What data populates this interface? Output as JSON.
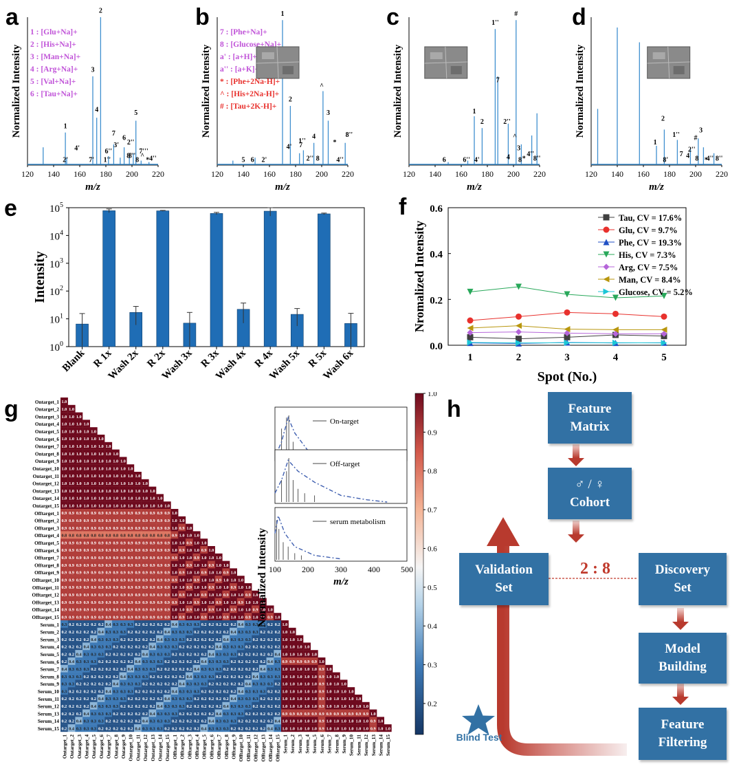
{
  "panel_letters": {
    "a": "a",
    "b": "b",
    "c": "c",
    "d": "d",
    "e": "e",
    "f": "f",
    "g": "g",
    "h": "h"
  },
  "spectra_common": {
    "ylabel": "Normalized Intensity",
    "xlabel": "m/z",
    "xticks": [
      "120",
      "140",
      "160",
      "180",
      "200",
      "220"
    ]
  },
  "panel_a": {
    "legend": [
      "1 : [Glu+Na]+",
      "2 : [His+Na]+",
      "3 : [Man+Na]+",
      "4 : [Arg+Na]+",
      "5 : [Val+Na]+",
      "6 : [Tau+Na]+"
    ],
    "peak_labels": [
      "1",
      "2",
      "3",
      "4",
      "5",
      "6",
      "7",
      "4'",
      "2'",
      "7'",
      "6''",
      "3'",
      "1''",
      "8'",
      "2''",
      "^",
      "8",
      "7'''",
      "*",
      "4''",
      "8''"
    ]
  },
  "panel_b": {
    "legend": [
      "7 : [Phe+Na]+",
      "8 : [Glucose+Na]+",
      "a' : [a+H]+",
      "a'' : [a+K]+",
      "* : [Phe+2Na-H]+",
      "^ : [His+2Na-H]+",
      "# : [Tau+2K-H]+"
    ],
    "legend_colors": [
      "#c053d8",
      "#c053d8",
      "#c053d8",
      "#c053d8",
      "#e8312d",
      "#e8312d",
      "#e8312d"
    ],
    "peak_labels": [
      "1",
      "2",
      "3",
      "4",
      "5",
      "6",
      "2'",
      "4'",
      "7",
      "1''",
      "2''",
      "8",
      "^",
      "*",
      "4''",
      "8''"
    ]
  },
  "panel_c": {
    "peak_labels": [
      "1''",
      "#",
      "7",
      "1",
      "2",
      "2''",
      "^",
      "3",
      "4",
      "4'",
      "6",
      "6''",
      "8",
      "*",
      "4''",
      "8''"
    ]
  },
  "panel_d": {
    "peak_labels": [
      "2",
      "1''",
      "1",
      "3",
      "#",
      "8'",
      "7",
      "2''",
      "4",
      "8",
      "*",
      "4''",
      "8''"
    ]
  },
  "chart_data": [
    {
      "type": "bar",
      "panel": "e",
      "ylabel": "Intensity",
      "yscale": "log",
      "ylim": [
        1,
        100000
      ],
      "yticks": [
        "10^0",
        "10^1",
        "10^2",
        "10^3",
        "10^4",
        "10^5"
      ],
      "categories": [
        "Blank",
        "R 1x",
        "Wash 2x",
        "R 2x",
        "Wash 3x",
        "R 3x",
        "Wash 4x",
        "R 4x",
        "Wash 5x",
        "R 5x",
        "Wash 6x"
      ],
      "values": [
        6.5,
        78000,
        17,
        77000,
        7,
        62000,
        22,
        75000,
        14.5,
        60000,
        6.8
      ],
      "errors": [
        9,
        12000,
        11,
        3000,
        10,
        6000,
        15,
        25000,
        9,
        4000,
        9
      ],
      "color": "#1f6db5"
    },
    {
      "type": "line",
      "panel": "f",
      "xlabel": "Spot (No.)",
      "ylabel": "Nromalized Intensity",
      "x": [
        1,
        2,
        3,
        4,
        5
      ],
      "ylim": [
        0,
        0.6
      ],
      "yticks": [
        "0.0",
        "0.2",
        "0.4",
        "0.6"
      ],
      "legend_position": "top-right",
      "series": [
        {
          "name": "Tau, CV = 17.6%",
          "values": [
            0.035,
            0.028,
            0.035,
            0.045,
            0.04
          ],
          "color": "#404040",
          "marker": "square"
        },
        {
          "name": "Glu, CV = 9.7%",
          "values": [
            0.108,
            0.125,
            0.143,
            0.137,
            0.125
          ],
          "color": "#e8312d",
          "marker": "circle"
        },
        {
          "name": "Phe, CV = 19.3%",
          "values": [
            0.01,
            0.008,
            0.012,
            0.01,
            0.011
          ],
          "color": "#1f4fc4",
          "marker": "triangle-up"
        },
        {
          "name": "His, CV = 7.3%",
          "values": [
            0.233,
            0.255,
            0.222,
            0.207,
            0.215
          ],
          "color": "#28a85a",
          "marker": "triangle-down"
        },
        {
          "name": "Arg, CV = 7.5%",
          "values": [
            0.055,
            0.058,
            0.053,
            0.05,
            0.05
          ],
          "color": "#b565d9",
          "marker": "diamond"
        },
        {
          "name": "Man, CV = 8.4%",
          "values": [
            0.075,
            0.085,
            0.07,
            0.068,
            0.068
          ],
          "color": "#b8960d",
          "marker": "triangle-left"
        },
        {
          "name": "Glucose, CV = 5.2%",
          "values": [
            0.012,
            0.01,
            0.011,
            0.011,
            0.01
          ],
          "color": "#1cc6d6",
          "marker": "triangle-right"
        }
      ]
    },
    {
      "type": "heatmap",
      "panel": "g",
      "labels": [
        "Ontarget_1",
        "Ontarget_2",
        "Ontarget_3",
        "Ontarget_4",
        "Ontarget_5",
        "Ontarget_6",
        "Ontarget_7",
        "Ontarget_8",
        "Ontarget_9",
        "Ontarget_10",
        "Ontarget_11",
        "Ontarget_12",
        "Ontarget_13",
        "Ontarget_14",
        "Ontarget_15",
        "Offtarget_1",
        "Offtarget_2",
        "Offtarget_3",
        "Offtarget_4",
        "Offtarget_5",
        "Offtarget_6",
        "Offtarget_7",
        "Offtarget_8",
        "Offtarget_9",
        "Offtarget_10",
        "Offtarget_11",
        "Offtarget_12",
        "Offtarget_13",
        "Offtarget_14",
        "Offtarget_15",
        "Serum_1",
        "Serum_2",
        "Serum_3",
        "Serum_4",
        "Serum_5",
        "Serum_6",
        "Serum_7",
        "Serum_8",
        "Serum_9",
        "Serum_10",
        "Serum_11",
        "Serum_12",
        "Serum_13",
        "Serum_14",
        "Serum_15"
      ],
      "blocks": {
        "on_on": 1.0,
        "off_on": 0.9,
        "off_off": 0.9,
        "serum_target": 0.2,
        "serum_serum": 1.0
      },
      "colorbar_ticks": [
        "1.0",
        "0.9",
        "0.8",
        "0.7",
        "0.6",
        "0.5",
        "0.4",
        "0.3",
        "0.2"
      ],
      "colorbar_range": [
        0.12,
        1.0
      ]
    }
  ],
  "inset_g": {
    "ylabel": "Normalized Intensity",
    "xlabel": "m/z",
    "xticks": [
      "100",
      "200",
      "300",
      "400",
      "500"
    ],
    "traces": [
      "On-target",
      "Off-target",
      "serum metabolism"
    ]
  },
  "flow": {
    "feature_matrix": [
      "Feature",
      "Matrix"
    ],
    "cohort_symbols": "♂ / ♀",
    "cohort": "Cohort",
    "validation": [
      "Validation",
      "Set"
    ],
    "ratio": "2 : 8",
    "discovery": [
      "Discovery",
      "Set"
    ],
    "model": [
      "Model",
      "Building"
    ],
    "filtering": [
      "Feature",
      "Filtering"
    ],
    "blind_test": "Blind Test"
  },
  "colors": {
    "bar": "#1f6db5",
    "flow_box": "#3271a4",
    "arrow": "#c0392b",
    "star": "#3271a4"
  }
}
